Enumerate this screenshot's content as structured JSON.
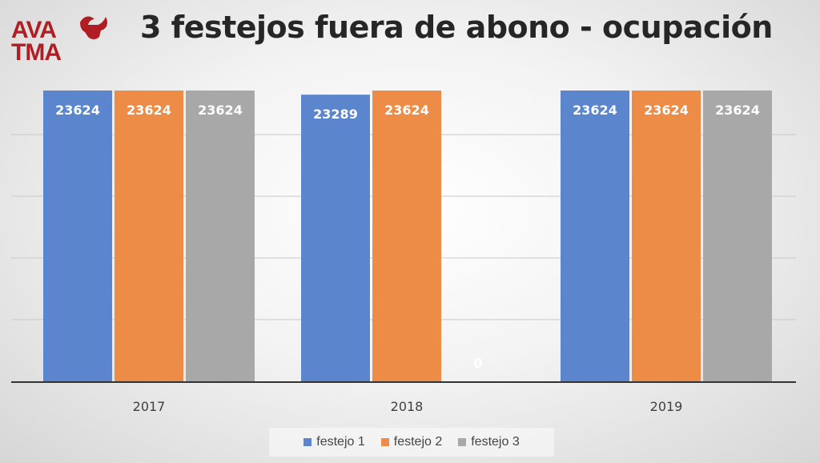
{
  "logo": {
    "line1": "AVA",
    "line2": "TMA"
  },
  "chart_data": {
    "type": "bar",
    "title": "3 festejos fuera de abono - ocupación",
    "categories": [
      "2017",
      "2018",
      "2019"
    ],
    "series": [
      {
        "name": "festejo 1",
        "color": "#5b85cc",
        "values": [
          23624,
          23289,
          23624
        ]
      },
      {
        "name": "festejo 2",
        "color": "#ed8c47",
        "values": [
          23624,
          23624,
          23624
        ]
      },
      {
        "name": "festejo 3",
        "color": "#a8a8a8",
        "values": [
          23624,
          0,
          23624
        ]
      }
    ],
    "data_labels": [
      [
        "23624",
        "23289",
        "23624"
      ],
      [
        "23624",
        "23624",
        "23624"
      ],
      [
        "23624",
        "0",
        "23624"
      ]
    ],
    "ylim": [
      0,
      23624
    ],
    "grid": true,
    "legend_position": "bottom"
  }
}
